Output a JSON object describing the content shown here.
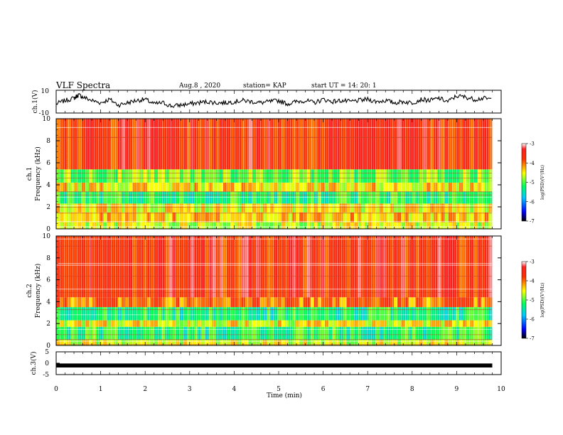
{
  "header": {
    "title": "VLF Spectra",
    "date": "Aug.8 , 2020",
    "station": "station= KAP",
    "start": "start UT = 14: 20: 1"
  },
  "chart_data": [
    {
      "type": "line",
      "panel": "ch1-waveform",
      "ylabel": "ch.1(V)",
      "ylim": [
        -10,
        10
      ],
      "yticks": [
        "10",
        "-10"
      ],
      "x": [
        0,
        0.2,
        0.4,
        0.5,
        0.6,
        0.8,
        1.0,
        1.2,
        1.4,
        1.6,
        1.8,
        2.0,
        2.2,
        2.4,
        2.6,
        2.8,
        3.0,
        3.2,
        3.4,
        3.6,
        3.8,
        4.0,
        4.2,
        4.4,
        4.6,
        4.8,
        5.0,
        5.2,
        5.4,
        5.6,
        5.8,
        6.0,
        6.2,
        6.4,
        6.6,
        6.8,
        7.0,
        7.2,
        7.4,
        7.6,
        7.8,
        8.0,
        8.2,
        8.4,
        8.6,
        8.8,
        9.0,
        9.2,
        9.4,
        9.6,
        9.8
      ],
      "values": [
        -2,
        1,
        3,
        6,
        4,
        1,
        -1,
        2,
        -3,
        -1,
        1,
        2,
        -2,
        -1,
        -4,
        -3,
        -2,
        -1,
        0,
        -1,
        -1,
        0,
        1,
        0,
        -1,
        0,
        1,
        -2,
        0,
        1,
        -1,
        2,
        0,
        1,
        0,
        1,
        2,
        0,
        1,
        -1,
        0,
        -1,
        2,
        1,
        3,
        0,
        5,
        4,
        2,
        3,
        2
      ]
    },
    {
      "type": "heatmap",
      "panel": "ch1-spectrogram",
      "ylabel": "ch.1\nFrequency (kHz)",
      "ylim": [
        0,
        10
      ],
      "yticks": [
        "0",
        "2",
        "4",
        "6",
        "8",
        "10"
      ],
      "colorbar": {
        "label": "log(PSD)(V²/Hz)",
        "range": [
          -7,
          -3
        ],
        "ticks": [
          "-3",
          "-4",
          "-5",
          "-6",
          "-7"
        ]
      },
      "frequency_bands_khz": [
        {
          "from": 0,
          "to": 0.6,
          "level": -4.6
        },
        {
          "from": 0.6,
          "to": 1.5,
          "level": -4.3
        },
        {
          "from": 1.5,
          "to": 2.3,
          "level": -4.5
        },
        {
          "from": 2.3,
          "to": 3.4,
          "level": -5.2
        },
        {
          "from": 3.4,
          "to": 4.2,
          "level": -4.4
        },
        {
          "from": 4.2,
          "to": 5.4,
          "level": -4.9
        },
        {
          "from": 5.4,
          "to": 10,
          "level": -3.6
        }
      ]
    },
    {
      "type": "heatmap",
      "panel": "ch2-spectrogram",
      "ylabel": "ch.2\nFrequency (kHz)",
      "ylim": [
        0,
        10
      ],
      "yticks": [
        "0",
        "2",
        "4",
        "6",
        "8",
        "10"
      ],
      "colorbar": {
        "label": "log(PSD)(V²/Hz)",
        "range": [
          -7,
          -3
        ],
        "ticks": [
          "-3",
          "-4",
          "-5",
          "-6",
          "-7"
        ]
      },
      "frequency_bands_khz": [
        {
          "from": 0,
          "to": 0.5,
          "level": -4.6
        },
        {
          "from": 0.5,
          "to": 1.7,
          "level": -5.2
        },
        {
          "from": 1.7,
          "to": 2.3,
          "level": -4.5
        },
        {
          "from": 2.3,
          "to": 3.5,
          "level": -5.3
        },
        {
          "from": 3.5,
          "to": 4.4,
          "level": -4.0
        },
        {
          "from": 4.4,
          "to": 10,
          "level": -3.6
        }
      ]
    },
    {
      "type": "line",
      "panel": "ch3-waveform",
      "ylabel": "ch.3(V)",
      "ylim": [
        -5,
        5
      ],
      "yticks": [
        "5",
        "0",
        "-5"
      ],
      "x": [
        0,
        9.8
      ],
      "values": [
        -1,
        -1
      ],
      "xlabel": "Time (min)",
      "xlim": [
        0,
        10
      ],
      "xticks": [
        "0",
        "1",
        "2",
        "3",
        "4",
        "5",
        "6",
        "7",
        "8",
        "9",
        "10"
      ]
    }
  ]
}
